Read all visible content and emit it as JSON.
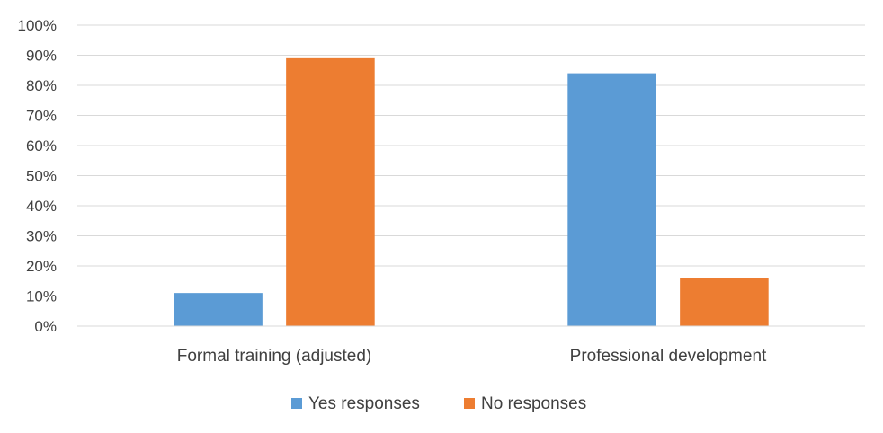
{
  "chart_data": {
    "type": "bar",
    "title": "",
    "xlabel": "",
    "ylabel": "",
    "categories": [
      "Formal training (adjusted)",
      "Professional development"
    ],
    "series": [
      {
        "name": "Yes responses",
        "color": "#5B9BD5",
        "values": [
          11,
          84
        ]
      },
      {
        "name": "No responses",
        "color": "#ED7D31",
        "values": [
          89,
          16
        ]
      }
    ],
    "ylim": [
      0,
      100
    ],
    "yticks": [
      "0%",
      "10%",
      "20%",
      "30%",
      "40%",
      "50%",
      "60%",
      "70%",
      "80%",
      "90%",
      "100%"
    ],
    "grid": true,
    "legend_position": "bottom"
  }
}
